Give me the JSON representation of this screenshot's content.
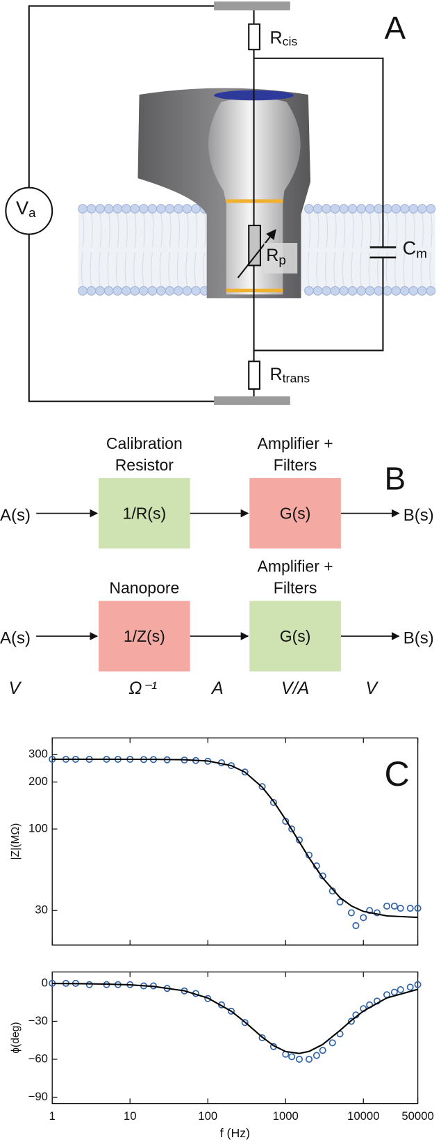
{
  "panel_a": {
    "label": "A",
    "r_cis": {
      "main": "R",
      "sub": "cis"
    },
    "v_a": {
      "main": "V",
      "sub": "a"
    },
    "r_p": {
      "main": "R",
      "sub": "p"
    },
    "c_m": {
      "main": "C",
      "sub": "m"
    },
    "r_trans": {
      "main": "R",
      "sub": "trans"
    }
  },
  "panel_b": {
    "label": "B",
    "rows": [
      {
        "input": "A(s)",
        "output": "B(s)",
        "blocks": [
          {
            "title": [
              "Calibration",
              "Resistor"
            ],
            "text": "1/R(s)",
            "color": "#cfe2b2"
          },
          {
            "title": [
              "Amplifier +",
              "Filters"
            ],
            "text": "G(s)",
            "color": "#f4a9a2"
          }
        ]
      },
      {
        "input": "A(s)",
        "output": "B(s)",
        "blocks": [
          {
            "title": [
              "Nanopore"
            ],
            "text": "1/Z(s)",
            "color": "#f4a9a2"
          },
          {
            "title": [
              "Amplifier +",
              "Filters"
            ],
            "text": "G(s)",
            "color": "#cfe2b2"
          }
        ]
      }
    ],
    "units": [
      "V",
      "Ω⁻¹",
      "A",
      "V/A",
      "V"
    ]
  },
  "panel_c": {
    "label": "C"
  },
  "chart_data": [
    {
      "type": "line",
      "ylabel": "|Z|(MΩ)",
      "xscale": "log",
      "yscale": "log",
      "xlim": [
        1,
        50000
      ],
      "ylim": [
        18,
        384
      ],
      "xticks": [
        1,
        10,
        100,
        1000,
        10000,
        50000
      ],
      "xtick_labels": false,
      "yticks": [
        30,
        100,
        200,
        300
      ],
      "series": [
        {
          "mode": "markers",
          "color": "#2f62a6",
          "x": [
            1,
            1.5,
            2,
            3,
            5,
            7,
            10,
            15,
            20,
            30,
            50,
            70,
            100,
            150,
            200,
            300,
            500,
            700,
            1000,
            1200,
            1500,
            2000,
            2500,
            3000,
            4000,
            5000,
            7000,
            8000,
            10000,
            12000,
            15000,
            20000,
            25000,
            30000,
            40000,
            50000
          ],
          "values": [
            280,
            280,
            280,
            280,
            280,
            280,
            280,
            279,
            279,
            278,
            277,
            275,
            272,
            266,
            255,
            232,
            187,
            148,
            112,
            100,
            85,
            68,
            58,
            50,
            40,
            34,
            29,
            24,
            27,
            30,
            29,
            32,
            32,
            31,
            31,
            31
          ]
        },
        {
          "mode": "line",
          "color": "#000000",
          "x": [
            1,
            2,
            5,
            10,
            20,
            50,
            100,
            200,
            300,
            500,
            700,
            1000,
            1500,
            2000,
            3000,
            5000,
            7000,
            10000,
            20000,
            50000
          ],
          "values": [
            280,
            280,
            280,
            279.9,
            279.7,
            278.2,
            273.1,
            254.9,
            231.5,
            185.6,
            150.3,
            115.0,
            82.6,
            65.4,
            48.5,
            36.3,
            32.1,
            29.6,
            27.7,
            27.1
          ]
        }
      ]
    },
    {
      "type": "line",
      "ylabel": "ϕ(deg)",
      "xlabel": "f (Hz)",
      "xscale": "log",
      "yscale": "linear",
      "xlim": [
        1,
        50000
      ],
      "ylim": [
        -95,
        9
      ],
      "xticks": [
        1,
        10,
        100,
        1000,
        10000,
        50000
      ],
      "xtick_labels": true,
      "yticks": [
        0,
        {
          "value": -30,
          "label": "−30"
        },
        {
          "value": -60,
          "label": "−60"
        },
        {
          "value": -90,
          "label": "−90"
        }
      ],
      "series": [
        {
          "mode": "markers",
          "color": "#2f62a6",
          "x": [
            1,
            1.5,
            2,
            3,
            5,
            7,
            10,
            15,
            20,
            30,
            50,
            70,
            100,
            150,
            200,
            300,
            500,
            700,
            1000,
            1200,
            1500,
            2000,
            2500,
            3000,
            4000,
            5000,
            7000,
            8000,
            10000,
            12000,
            15000,
            20000,
            25000,
            30000,
            40000,
            50000
          ],
          "values": [
            0,
            0,
            0,
            -1,
            -1,
            -1,
            -1,
            -2,
            -2,
            -4,
            -6,
            -8,
            -12,
            -17,
            -22,
            -31,
            -43,
            -50,
            -56,
            -58,
            -60,
            -60,
            -57,
            -53,
            -47,
            -40,
            -30,
            -25,
            -20,
            -17,
            -14,
            -9,
            -7,
            -5,
            -3,
            -1
          ]
        },
        {
          "mode": "line",
          "color": "#000000",
          "x": [
            1,
            2,
            5,
            10,
            20,
            50,
            100,
            200,
            300,
            500,
            700,
            1000,
            1500,
            2000,
            3000,
            5000,
            7000,
            10000,
            20000,
            50000
          ],
          "values": [
            -0.1,
            -0.2,
            -0.6,
            -1.2,
            -2.4,
            -5.9,
            -11.6,
            -22.0,
            -30.6,
            -42.5,
            -49.2,
            -53.9,
            -55.4,
            -53.8,
            -48.3,
            -37.2,
            -29.4,
            -21.9,
            -11.5,
            -4.7
          ]
        }
      ]
    }
  ]
}
